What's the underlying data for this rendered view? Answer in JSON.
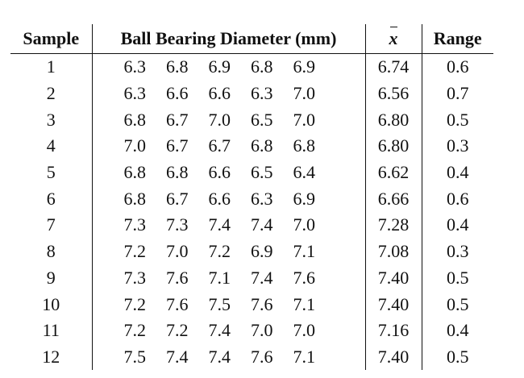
{
  "table": {
    "headers": {
      "sample": "Sample",
      "diameter": "Ball Bearing Diameter (mm)",
      "mean_symbol": "x",
      "range": "Range"
    },
    "rows": [
      {
        "sample": "1",
        "diameters": [
          "6.3",
          "6.8",
          "6.9",
          "6.8",
          "6.9"
        ],
        "mean": "6.74",
        "range": "0.6"
      },
      {
        "sample": "2",
        "diameters": [
          "6.3",
          "6.6",
          "6.6",
          "6.3",
          "7.0"
        ],
        "mean": "6.56",
        "range": "0.7"
      },
      {
        "sample": "3",
        "diameters": [
          "6.8",
          "6.7",
          "7.0",
          "6.5",
          "7.0"
        ],
        "mean": "6.80",
        "range": "0.5"
      },
      {
        "sample": "4",
        "diameters": [
          "7.0",
          "6.7",
          "6.7",
          "6.8",
          "6.8"
        ],
        "mean": "6.80",
        "range": "0.3"
      },
      {
        "sample": "5",
        "diameters": [
          "6.8",
          "6.8",
          "6.6",
          "6.5",
          "6.4"
        ],
        "mean": "6.62",
        "range": "0.4"
      },
      {
        "sample": "6",
        "diameters": [
          "6.8",
          "6.7",
          "6.6",
          "6.3",
          "6.9"
        ],
        "mean": "6.66",
        "range": "0.6"
      },
      {
        "sample": "7",
        "diameters": [
          "7.3",
          "7.3",
          "7.4",
          "7.4",
          "7.0"
        ],
        "mean": "7.28",
        "range": "0.4"
      },
      {
        "sample": "8",
        "diameters": [
          "7.2",
          "7.0",
          "7.2",
          "6.9",
          "7.1"
        ],
        "mean": "7.08",
        "range": "0.3"
      },
      {
        "sample": "9",
        "diameters": [
          "7.3",
          "7.6",
          "7.1",
          "7.4",
          "7.6"
        ],
        "mean": "7.40",
        "range": "0.5"
      },
      {
        "sample": "10",
        "diameters": [
          "7.2",
          "7.6",
          "7.5",
          "7.6",
          "7.1"
        ],
        "mean": "7.40",
        "range": "0.5"
      },
      {
        "sample": "11",
        "diameters": [
          "7.2",
          "7.2",
          "7.4",
          "7.0",
          "7.0"
        ],
        "mean": "7.16",
        "range": "0.4"
      },
      {
        "sample": "12",
        "diameters": [
          "7.5",
          "7.4",
          "7.4",
          "7.6",
          "7.1"
        ],
        "mean": "7.40",
        "range": "0.5"
      }
    ]
  }
}
